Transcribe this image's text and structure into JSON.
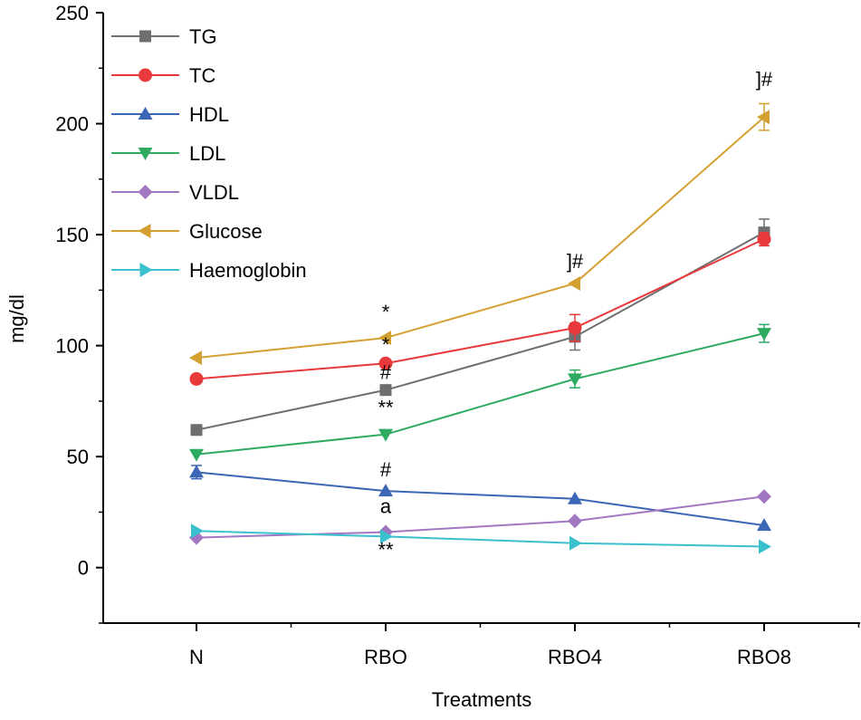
{
  "chart_data": {
    "type": "line",
    "title": "",
    "xlabel": "Treatments",
    "ylabel": "mg/dl",
    "ylim": [
      -25,
      250
    ],
    "yticks": [
      0,
      50,
      100,
      150,
      200,
      250
    ],
    "categories": [
      "N",
      "RBO",
      "RBO4",
      "RBO8"
    ],
    "legend_position": "top-left",
    "series": [
      {
        "name": "TG",
        "color": "#6e6e6e",
        "marker": "square",
        "values": [
          62,
          80,
          104,
          151
        ],
        "errors": [
          0,
          1,
          6,
          6
        ]
      },
      {
        "name": "TC",
        "color": "#e8393b",
        "marker": "circle",
        "values": [
          85,
          92,
          108,
          148
        ],
        "errors": [
          0,
          0,
          6,
          3
        ]
      },
      {
        "name": "HDL",
        "color": "#3a66b5",
        "marker": "triangle-up",
        "values": [
          43,
          34.5,
          31,
          19
        ],
        "errors": [
          3,
          0,
          0,
          0
        ]
      },
      {
        "name": "LDL",
        "color": "#2eaa61",
        "marker": "triangle-down",
        "values": [
          51,
          60,
          85,
          105.5
        ],
        "errors": [
          0,
          0,
          4,
          4
        ]
      },
      {
        "name": "VLDL",
        "color": "#a277c2",
        "marker": "diamond",
        "values": [
          13.5,
          16,
          21,
          32
        ],
        "errors": [
          0,
          0,
          0,
          0
        ]
      },
      {
        "name": "Glucose",
        "color": "#d4a032",
        "marker": "triangle-left",
        "values": [
          94.5,
          103.5,
          128,
          203
        ],
        "errors": [
          0,
          0,
          0,
          6
        ]
      },
      {
        "name": "Haemoglobin",
        "color": "#3bc0cd",
        "marker": "triangle-right",
        "values": [
          16.5,
          14,
          11,
          9.5
        ],
        "errors": [
          0,
          0,
          0,
          0
        ]
      }
    ],
    "annotations": [
      {
        "category": "RBO",
        "y": 112,
        "text": "*"
      },
      {
        "category": "RBO",
        "y": 97.5,
        "text": "*"
      },
      {
        "category": "RBO",
        "y": 85,
        "text": "#"
      },
      {
        "category": "RBO",
        "y": 69,
        "text": "**"
      },
      {
        "category": "RBO",
        "y": 41,
        "text": "#"
      },
      {
        "category": "RBO",
        "y": 24.5,
        "text": "a"
      },
      {
        "category": "RBO",
        "y": 5,
        "text": "**"
      },
      {
        "category": "RBO4",
        "y": 135,
        "text": "]#"
      },
      {
        "category": "RBO8",
        "y": 217,
        "text": "]#"
      }
    ]
  }
}
